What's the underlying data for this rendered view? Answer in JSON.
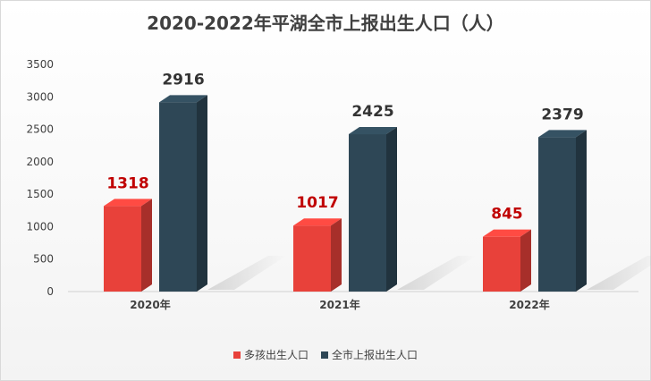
{
  "chart_data": {
    "type": "bar",
    "title": "2020-2022年平湖全市上报出生人口（人）",
    "categories": [
      "2020年",
      "2021年",
      "2022年"
    ],
    "series": [
      {
        "name": "多孩出生人口",
        "values": [
          1318,
          1017,
          845
        ],
        "color": "#e8413a",
        "label_color": "#c00000"
      },
      {
        "name": "全市上报出生人口",
        "values": [
          2916,
          2425,
          2379
        ],
        "color": "#2e4756",
        "label_color": "#333333"
      }
    ],
    "ylim": [
      0,
      3500
    ],
    "yticks": [
      0,
      500,
      1000,
      1500,
      2000,
      2500,
      3000,
      3500
    ],
    "grid": false,
    "legend": "bottom"
  }
}
